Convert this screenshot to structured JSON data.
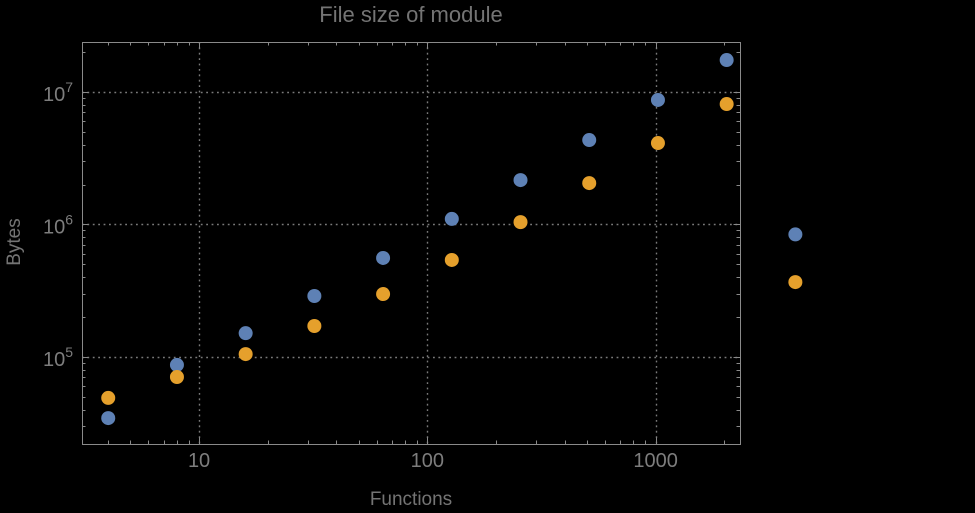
{
  "page": {
    "background": "#000000"
  },
  "chart_data": {
    "type": "scatter",
    "title": "File size of module",
    "xlabel": "Functions",
    "ylabel": "Bytes",
    "x_scale": "log",
    "y_scale": "log",
    "grid": "dotted",
    "legend": "none",
    "x": [
      4,
      8,
      16,
      32,
      64,
      128,
      256,
      512,
      1024,
      2048,
      4096
    ],
    "series": [
      {
        "name": "series-1-blue",
        "color": "#5e81b5",
        "values": [
          34500,
          87000,
          151000,
          288000,
          558000,
          1100000,
          2160000,
          4330000,
          8690000,
          17400000,
          840000
        ]
      },
      {
        "name": "series-2-orange",
        "color": "#e5a02c",
        "values": [
          49000,
          70500,
          105000,
          171000,
          298000,
          539000,
          1040000,
          2050000,
          4110000,
          8100000,
          367000
        ]
      }
    ],
    "xlim": [
      3.07,
      2343
    ],
    "ylim": [
      22000,
      23800000
    ],
    "x_ticks": [
      {
        "value": 10,
        "label": "10"
      },
      {
        "value": 100,
        "label": "100"
      },
      {
        "value": 1000,
        "label": "1000"
      }
    ],
    "y_ticks": [
      {
        "value": 100000,
        "base": "10",
        "exp": "5"
      },
      {
        "value": 1000000,
        "base": "10",
        "exp": "6"
      },
      {
        "value": 10000000,
        "base": "10",
        "exp": "7"
      }
    ],
    "marker_diameter": 14,
    "colors": {
      "frame": "#8a8a8a",
      "grid": "#7a7a7a",
      "tick_label": "#7d7d7d",
      "text": "#747474"
    }
  }
}
